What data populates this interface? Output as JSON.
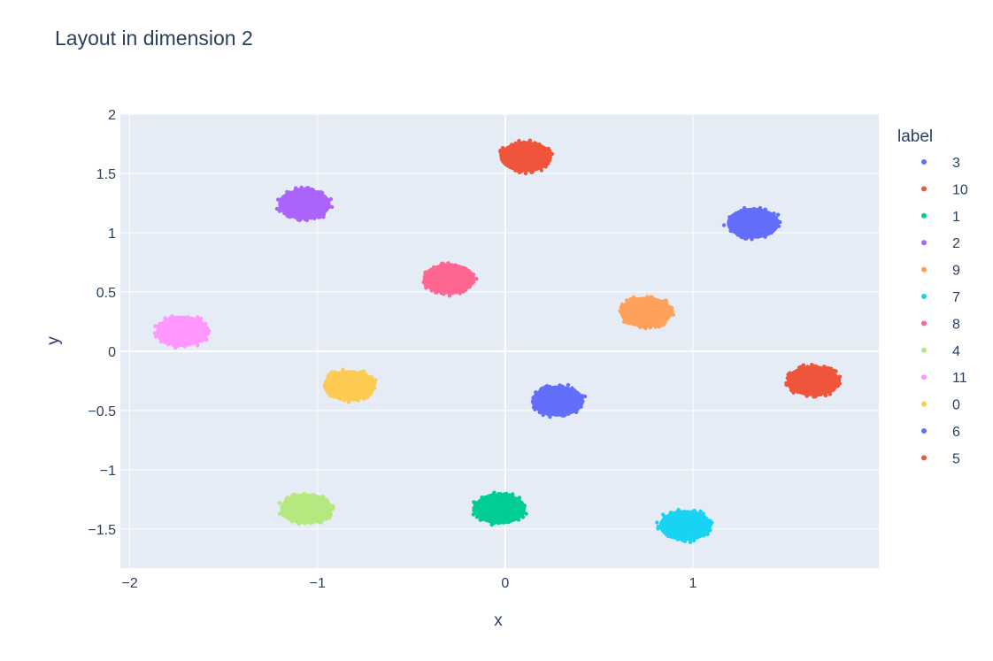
{
  "chart_data": {
    "type": "scatter",
    "title": "Layout in dimension 2",
    "xlabel": "x",
    "ylabel": "y",
    "xlim": [
      -2.05,
      1.99
    ],
    "ylim": [
      -1.83,
      2.0
    ],
    "x_ticks": [
      -2,
      -1,
      0,
      1
    ],
    "x_tick_labels": [
      "−2",
      "−1",
      "0",
      "1"
    ],
    "y_ticks": [
      2,
      1.5,
      1,
      0.5,
      0,
      -0.5,
      -1,
      -1.5
    ],
    "y_tick_labels": [
      "2",
      "1.5",
      "1",
      "0.5",
      "0",
      "−0.5",
      "−1",
      "−1.5"
    ],
    "grid": true,
    "plot_background": "#e5ecf6",
    "legend_title": "label",
    "legend_position": "right",
    "series": [
      {
        "name": "3",
        "color": "#636efa",
        "center": [
          1.32,
          1.08
        ],
        "radius": [
          0.15,
          0.14
        ]
      },
      {
        "name": "10",
        "color": "#ef553b",
        "center": [
          0.11,
          1.64
        ],
        "radius": [
          0.15,
          0.14
        ]
      },
      {
        "name": "1",
        "color": "#00cc96",
        "center": [
          -0.03,
          -1.33
        ],
        "radius": [
          0.15,
          0.14
        ]
      },
      {
        "name": "2",
        "color": "#ab63fa",
        "center": [
          -1.07,
          1.24
        ],
        "radius": [
          0.15,
          0.14
        ]
      },
      {
        "name": "9",
        "color": "#ffa15a",
        "center": [
          0.75,
          0.33
        ],
        "radius": [
          0.15,
          0.14
        ]
      },
      {
        "name": "7",
        "color": "#19d3f3",
        "center": [
          0.96,
          -1.47
        ],
        "radius": [
          0.15,
          0.14
        ]
      },
      {
        "name": "8",
        "color": "#ff6692",
        "center": [
          -0.3,
          0.61
        ],
        "radius": [
          0.15,
          0.14
        ]
      },
      {
        "name": "4",
        "color": "#b6e880",
        "center": [
          -1.06,
          -1.33
        ],
        "radius": [
          0.15,
          0.14
        ]
      },
      {
        "name": "11",
        "color": "#ff97ff",
        "center": [
          -1.72,
          0.17
        ],
        "radius": [
          0.15,
          0.14
        ]
      },
      {
        "name": "0",
        "color": "#fecb52",
        "center": [
          -0.83,
          -0.29
        ],
        "radius": [
          0.15,
          0.14
        ]
      },
      {
        "name": "6",
        "color": "#636efa",
        "center": [
          0.28,
          -0.42
        ],
        "radius": [
          0.15,
          0.14
        ]
      },
      {
        "name": "5",
        "color": "#ef553b",
        "center": [
          1.64,
          -0.25
        ],
        "radius": [
          0.15,
          0.14
        ]
      }
    ]
  }
}
